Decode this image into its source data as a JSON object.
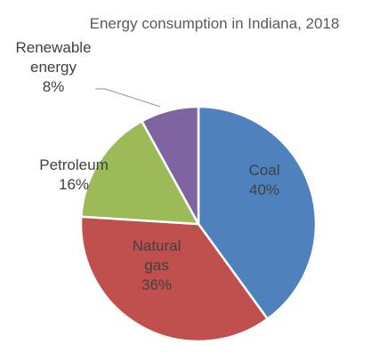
{
  "chart_data": {
    "type": "pie",
    "title": "Energy consumption in Indiana, 2018",
    "slices": [
      {
        "label": "Coal",
        "label_lines": [
          "Coal"
        ],
        "value": 40,
        "value_label": "40%",
        "color": "#4f81bd",
        "label_color": "#404040"
      },
      {
        "label": "Natural gas",
        "label_lines": [
          "Natural",
          "gas"
        ],
        "value": 36,
        "value_label": "36%",
        "color": "#c0504d",
        "label_color": "#404040"
      },
      {
        "label": "Petroleum",
        "label_lines": [
          "Petroleum"
        ],
        "value": 16,
        "value_label": "16%",
        "color": "#9bbb59",
        "label_color": "#404040"
      },
      {
        "label": "Renewable energy",
        "label_lines": [
          "Renewable",
          "energy"
        ],
        "value": 8,
        "value_label": "8%",
        "color": "#8064a2",
        "label_color": "#404040"
      }
    ],
    "start_angle": "12 o'clock",
    "direction": "clockwise",
    "legend": "none",
    "leader_line_color": "#a6a6a6"
  }
}
